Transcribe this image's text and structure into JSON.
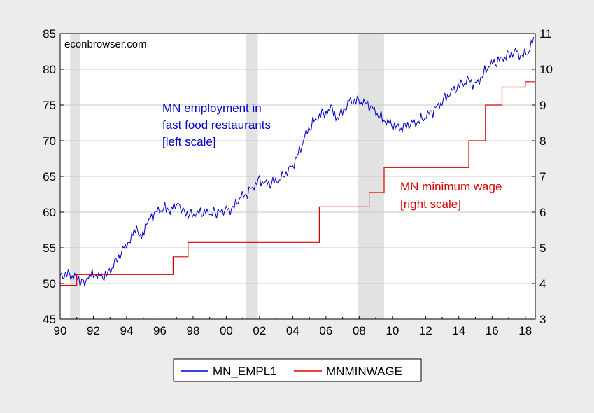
{
  "watermark": "econbrowser.com",
  "colors": {
    "employment": "#0000cc",
    "min_wage": "#dd0000",
    "recession": "#e2e2e2",
    "plot_bg": "#ffffff",
    "grid": "#c8c8c8",
    "page_bg": "#ececec"
  },
  "annotations": {
    "employment": [
      "MN employment in",
      "fast food restaurants",
      "[left scale]"
    ],
    "min_wage": [
      "MN minimum wage",
      "[right scale]"
    ]
  },
  "legend": {
    "employment": "MN_EMPL1",
    "min_wage": "MNMINWAGE"
  },
  "chart_data": {
    "type": "line",
    "title": "",
    "xlim": [
      1990.0,
      2018.6
    ],
    "x_ticks": [
      1990,
      1992,
      1994,
      1996,
      1998,
      2000,
      2002,
      2004,
      2006,
      2008,
      2010,
      2012,
      2014,
      2016,
      2018
    ],
    "x_tick_labels": [
      "90",
      "92",
      "94",
      "96",
      "98",
      "00",
      "02",
      "04",
      "06",
      "08",
      "10",
      "12",
      "14",
      "16",
      "18"
    ],
    "y_left": {
      "range": [
        45,
        85
      ],
      "ticks": [
        45,
        50,
        55,
        60,
        65,
        70,
        75,
        80,
        85
      ]
    },
    "y_right": {
      "range": [
        3,
        11
      ],
      "ticks": [
        3,
        4,
        5,
        6,
        7,
        8,
        9,
        10,
        11
      ]
    },
    "grid": true,
    "legend_position": "bottom-center",
    "recessions": [
      [
        1990.6,
        1991.2
      ],
      [
        2001.2,
        2001.9
      ],
      [
        2007.9,
        2009.5
      ]
    ],
    "series": [
      {
        "name": "MN_EMPL1",
        "axis": "left",
        "x": [
          1990.0,
          1990.4,
          1990.8,
          1991.2,
          1991.4,
          1991.7,
          1992.0,
          1992.4,
          1992.8,
          1993.2,
          1993.6,
          1994.0,
          1994.3,
          1994.6,
          1994.9,
          1995.2,
          1995.5,
          1995.9,
          1996.3,
          1996.7,
          1997.0,
          1997.2,
          1997.4,
          1997.8,
          1998.2,
          1998.6,
          1999.0,
          1999.5,
          2000.0,
          2000.4,
          2000.8,
          2001.2,
          2001.6,
          2002.0,
          2002.4,
          2002.8,
          2003.2,
          2003.6,
          2004.0,
          2004.4,
          2004.8,
          2005.2,
          2005.6,
          2006.0,
          2006.3,
          2006.6,
          2007.0,
          2007.4,
          2007.8,
          2008.2,
          2008.6,
          2009.0,
          2009.4,
          2009.8,
          2010.2,
          2010.6,
          2011.0,
          2011.4,
          2011.8,
          2012.2,
          2012.6,
          2013.0,
          2013.4,
          2013.8,
          2014.2,
          2014.6,
          2015.0,
          2015.4,
          2015.8,
          2016.2,
          2016.6,
          2017.0,
          2017.4,
          2017.8,
          2018.2,
          2018.5
        ],
        "values": [
          51.0,
          51.3,
          51.0,
          50.5,
          50.3,
          50.7,
          51.3,
          51.0,
          51.2,
          52.5,
          54.0,
          55.5,
          56.5,
          57.5,
          56.8,
          58.0,
          59.5,
          60.2,
          60.5,
          60.3,
          60.8,
          61.0,
          60.2,
          59.6,
          59.8,
          60.0,
          59.8,
          60.0,
          60.3,
          60.5,
          62.0,
          62.5,
          63.5,
          64.5,
          64.0,
          64.2,
          64.5,
          65.5,
          66.5,
          68.5,
          71.0,
          72.5,
          73.5,
          74.0,
          74.5,
          73.2,
          74.0,
          75.5,
          75.6,
          75.4,
          75.0,
          74.0,
          73.0,
          72.5,
          72.0,
          71.8,
          72.3,
          72.5,
          73.0,
          73.8,
          74.5,
          75.5,
          76.5,
          77.3,
          78.0,
          78.5,
          77.8,
          79.0,
          80.5,
          81.0,
          81.5,
          82.0,
          82.5,
          81.8,
          82.5,
          84.5
        ]
      },
      {
        "name": "MNMINWAGE",
        "axis": "right",
        "steps": [
          [
            1990.0,
            3.95
          ],
          [
            1991.0,
            4.25
          ],
          [
            1996.8,
            4.75
          ],
          [
            1997.7,
            5.15
          ],
          [
            2005.6,
            6.15
          ],
          [
            2008.6,
            6.55
          ],
          [
            2009.5,
            7.25
          ],
          [
            2014.6,
            8.0
          ],
          [
            2015.6,
            9.0
          ],
          [
            2016.6,
            9.5
          ],
          [
            2018.0,
            9.65
          ],
          [
            2018.6,
            9.65
          ]
        ]
      }
    ]
  }
}
